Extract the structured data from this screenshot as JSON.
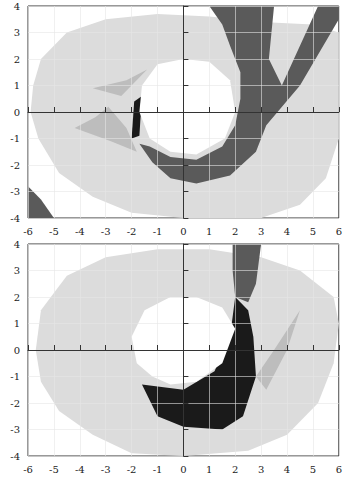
{
  "chart_data": [
    {
      "type": "polygon",
      "xlim": [
        -6,
        6
      ],
      "ylim": [
        -4,
        4
      ],
      "xticks": [
        -6,
        -5,
        -4,
        -3,
        -2,
        -1,
        0,
        1,
        2,
        3,
        4,
        5,
        6
      ],
      "yticks": [
        -4,
        -3,
        -2,
        -1,
        0,
        1,
        2,
        3,
        4
      ],
      "grid": true,
      "regions": [
        {
          "color": "#dcdcdc",
          "points": [
            [
              -5.8,
              1
            ],
            [
              -5.5,
              2
            ],
            [
              -4.5,
              3
            ],
            [
              -3,
              3.5
            ],
            [
              -1,
              3.7
            ],
            [
              1,
              3.6
            ],
            [
              3,
              3.4
            ],
            [
              5,
              3.3
            ],
            [
              6,
              3
            ],
            [
              6,
              -1
            ],
            [
              5.5,
              -2.5
            ],
            [
              4.5,
              -3.5
            ],
            [
              3,
              -4
            ],
            [
              0,
              -4
            ],
            [
              -2,
              -3.8
            ],
            [
              -3.5,
              -3.2
            ],
            [
              -4.8,
              -2.3
            ],
            [
              -5.6,
              -1
            ],
            [
              -5.9,
              0
            ]
          ]
        },
        {
          "color": "#bdbdbd",
          "points": [
            [
              -4.2,
              -0.6
            ],
            [
              -2.8,
              -1.1
            ],
            [
              -1.8,
              -1.5
            ],
            [
              -2.2,
              -0.6
            ],
            [
              -2.9,
              0.2
            ],
            [
              -3.4,
              -0.2
            ]
          ]
        },
        {
          "color": "#bdbdbd",
          "points": [
            [
              -3.5,
              0.9
            ],
            [
              -2.2,
              1.2
            ],
            [
              -1.4,
              1.6
            ],
            [
              -2.4,
              0.6
            ]
          ]
        },
        {
          "color": "#5a5a5a",
          "points": [
            [
              1,
              4
            ],
            [
              3.5,
              4
            ],
            [
              3.3,
              2
            ],
            [
              3.8,
              1
            ],
            [
              5.2,
              4
            ],
            [
              6,
              4
            ],
            [
              6,
              3.5
            ],
            [
              4.5,
              1
            ],
            [
              3.2,
              -0.5
            ],
            [
              2.8,
              -1.5
            ],
            [
              1.8,
              -2.4
            ],
            [
              0.5,
              -2.7
            ],
            [
              -0.5,
              -2.5
            ],
            [
              -1.2,
              -1.9
            ],
            [
              -1.7,
              -1.2
            ],
            [
              -1.3,
              -1.3
            ],
            [
              -0.5,
              -1.7
            ],
            [
              0.5,
              -1.8
            ],
            [
              1.5,
              -1.3
            ],
            [
              2,
              -0.5
            ],
            [
              2.2,
              0.5
            ],
            [
              2.2,
              1.5
            ],
            [
              1.8,
              2.5
            ],
            [
              1.5,
              3.3
            ]
          ]
        },
        {
          "color": "#5a5a5a",
          "points": [
            [
              -6,
              -2.8
            ],
            [
              -5.5,
              -3.3
            ],
            [
              -5,
              -4
            ],
            [
              -6,
              -4
            ]
          ]
        },
        {
          "color": "#1a1a1a",
          "points": [
            [
              -2,
              -1
            ],
            [
              -1.7,
              -0.9
            ],
            [
              -1.6,
              0.6
            ],
            [
              -1.9,
              0.4
            ]
          ]
        },
        {
          "color": "#ffffff",
          "points": [
            [
              -1.6,
              1
            ],
            [
              -1,
              1.8
            ],
            [
              0,
              2
            ],
            [
              1,
              1.9
            ],
            [
              1.8,
              1.2
            ],
            [
              2,
              0
            ],
            [
              1.6,
              -1
            ],
            [
              0.5,
              -1.6
            ],
            [
              -0.5,
              -1.5
            ],
            [
              -1.3,
              -1
            ],
            [
              -1.7,
              0
            ]
          ]
        }
      ]
    },
    {
      "type": "polygon",
      "xlim": [
        -6,
        6
      ],
      "ylim": [
        -4,
        4
      ],
      "xticks": [
        -6,
        -5,
        -4,
        -3,
        -2,
        -1,
        0,
        1,
        2,
        3,
        4,
        5,
        6
      ],
      "yticks": [
        -4,
        -3,
        -2,
        -1,
        0,
        1,
        2,
        3,
        4
      ],
      "grid": true,
      "regions": [
        {
          "color": "#dcdcdc",
          "points": [
            [
              -5.7,
              0
            ],
            [
              -5.5,
              1.5
            ],
            [
              -4.5,
              2.8
            ],
            [
              -3,
              3.5
            ],
            [
              -1,
              3.8
            ],
            [
              1,
              3.8
            ],
            [
              3,
              3.5
            ],
            [
              4.5,
              3
            ],
            [
              5.8,
              2
            ],
            [
              6,
              1
            ],
            [
              5.8,
              -0.5
            ],
            [
              5.2,
              -2
            ],
            [
              4,
              -3.2
            ],
            [
              2.5,
              -3.8
            ],
            [
              0,
              -4
            ],
            [
              -2,
              -3.9
            ],
            [
              -3.5,
              -3.2
            ],
            [
              -4.8,
              -2.3
            ],
            [
              -5.5,
              -1.2
            ]
          ]
        },
        {
          "color": "#bdbdbd",
          "points": [
            [
              2.8,
              -1
            ],
            [
              3.5,
              0
            ],
            [
              4.5,
              1.5
            ],
            [
              4,
              0
            ],
            [
              3.2,
              -1.5
            ]
          ]
        },
        {
          "color": "#5a5a5a",
          "points": [
            [
              1.9,
              4
            ],
            [
              3,
              4
            ],
            [
              2.8,
              2.5
            ],
            [
              2.5,
              1.8
            ],
            [
              2,
              2
            ],
            [
              1.9,
              3
            ]
          ]
        },
        {
          "color": "#1a1a1a",
          "points": [
            [
              -1.6,
              -1.3
            ],
            [
              -1,
              -2.5
            ],
            [
              0,
              -2.9
            ],
            [
              1.5,
              -3
            ],
            [
              2.3,
              -2.5
            ],
            [
              2.8,
              -1
            ],
            [
              2.7,
              0.5
            ],
            [
              2.5,
              1.5
            ],
            [
              2,
              2
            ],
            [
              1.8,
              0.5
            ],
            [
              1.2,
              -0.8
            ],
            [
              0,
              -1.5
            ]
          ]
        },
        {
          "color": "#ffffff",
          "points": [
            [
              -2,
              0.5
            ],
            [
              -1.5,
              1.5
            ],
            [
              -0.5,
              2
            ],
            [
              0.5,
              2
            ],
            [
              1.5,
              1.6
            ],
            [
              2,
              0.8
            ],
            [
              1.5,
              -0.5
            ],
            [
              0.5,
              -1.2
            ],
            [
              -0.5,
              -1.3
            ],
            [
              -1.2,
              -1
            ],
            [
              -1.8,
              -0.5
            ]
          ]
        }
      ]
    }
  ]
}
